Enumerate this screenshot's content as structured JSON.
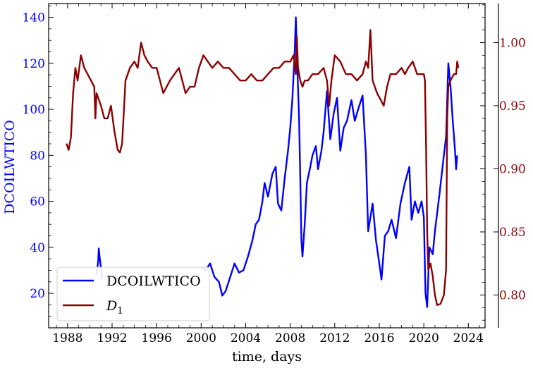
{
  "chart_data": {
    "type": "line",
    "xlabel": "time, days",
    "ylabel_left": "DCOILWTICO",
    "ylabel_right": "",
    "x_ticks": [
      "1988",
      "1992",
      "1996",
      "2000",
      "2004",
      "2008",
      "2012",
      "2016",
      "2020",
      "2024"
    ],
    "y_left_ticks": [
      "20",
      "40",
      "60",
      "80",
      "100",
      "120",
      "140"
    ],
    "y_right_ticks": [
      "0.80",
      "0.85",
      "0.90",
      "0.95",
      "1.00"
    ],
    "xlim": [
      1986.3,
      2025.5
    ],
    "ylim_left": [
      5,
      146
    ],
    "ylim_right": [
      0.774,
      1.031
    ],
    "grid": false,
    "legend_position": "lower-left",
    "colors": {
      "left_axis": "#0000ff",
      "right_axis": "#8b0000"
    },
    "legend": [
      {
        "label": "DCOILWTICO",
        "color": "#0000ff"
      },
      {
        "label_main": "D",
        "label_sub": "1",
        "color": "#8b0000"
      }
    ],
    "series": [
      {
        "name": "DCOILWTICO",
        "axis": "left",
        "color": "#0000ff",
        "segments": [
          [
            [
              1990.6,
              28
            ],
            [
              1990.75,
              34
            ],
            [
              1990.8,
              39.5
            ],
            [
              1990.9,
              35
            ],
            [
              1991.0,
              31
            ],
            [
              1991.1,
              26
            ]
          ],
          [
            [
              2000.0,
              31
            ],
            [
              2000.4,
              30
            ],
            [
              2000.8,
              33
            ],
            [
              2001.2,
              27
            ],
            [
              2001.6,
              25
            ],
            [
              2001.9,
              19
            ],
            [
              2002.2,
              21
            ],
            [
              2002.6,
              27
            ],
            [
              2003.0,
              33
            ],
            [
              2003.4,
              29
            ],
            [
              2003.8,
              30
            ],
            [
              2004.2,
              36
            ],
            [
              2004.6,
              43
            ],
            [
              2004.9,
              50
            ],
            [
              2005.2,
              52
            ],
            [
              2005.5,
              60
            ],
            [
              2005.7,
              68
            ],
            [
              2006.0,
              62
            ],
            [
              2006.4,
              72
            ],
            [
              2006.7,
              75
            ],
            [
              2006.9,
              59
            ],
            [
              2007.2,
              56
            ],
            [
              2007.5,
              70
            ],
            [
              2007.8,
              82
            ],
            [
              2008.0,
              92
            ],
            [
              2008.2,
              105
            ],
            [
              2008.4,
              125
            ],
            [
              2008.5,
              140
            ],
            [
              2008.6,
              124
            ],
            [
              2008.8,
              95
            ],
            [
              2008.9,
              70
            ],
            [
              2009.0,
              43
            ],
            [
              2009.1,
              36
            ],
            [
              2009.3,
              50
            ],
            [
              2009.5,
              68
            ],
            [
              2009.8,
              75
            ],
            [
              2010.0,
              80
            ],
            [
              2010.3,
              84
            ],
            [
              2010.5,
              74
            ],
            [
              2010.8,
              82
            ],
            [
              2011.0,
              90
            ],
            [
              2011.3,
              108
            ],
            [
              2011.6,
              87
            ],
            [
              2011.9,
              98
            ],
            [
              2012.2,
              105
            ],
            [
              2012.5,
              82
            ],
            [
              2012.8,
              92
            ],
            [
              2013.1,
              95
            ],
            [
              2013.5,
              104
            ],
            [
              2013.8,
              95
            ],
            [
              2014.1,
              100
            ],
            [
              2014.5,
              106
            ],
            [
              2014.8,
              80
            ],
            [
              2015.0,
              47
            ],
            [
              2015.4,
              59
            ],
            [
              2015.7,
              43
            ],
            [
              2016.0,
              33
            ],
            [
              2016.2,
              26
            ],
            [
              2016.5,
              45
            ],
            [
              2016.8,
              47
            ],
            [
              2017.1,
              52
            ],
            [
              2017.5,
              44
            ],
            [
              2017.9,
              59
            ],
            [
              2018.3,
              68
            ],
            [
              2018.7,
              75
            ],
            [
              2018.9,
              52
            ],
            [
              2019.2,
              60
            ],
            [
              2019.5,
              55
            ],
            [
              2019.8,
              60
            ],
            [
              2020.0,
              53
            ],
            [
              2020.15,
              20
            ],
            [
              2020.3,
              14
            ],
            [
              2020.5,
              40
            ],
            [
              2020.8,
              37
            ],
            [
              2021.0,
              47
            ],
            [
              2021.4,
              63
            ],
            [
              2021.8,
              80
            ],
            [
              2022.0,
              88
            ],
            [
              2022.2,
              120
            ],
            [
              2022.4,
              110
            ],
            [
              2022.6,
              95
            ],
            [
              2022.8,
              82
            ],
            [
              2022.9,
              74
            ],
            [
              2023.0,
              80
            ]
          ]
        ]
      },
      {
        "name": "D_1",
        "axis": "right",
        "color": "#8b0000",
        "points": [
          [
            1987.9,
            0.92
          ],
          [
            1988.1,
            0.915
          ],
          [
            1988.3,
            0.925
          ],
          [
            1988.5,
            0.96
          ],
          [
            1988.7,
            0.98
          ],
          [
            1988.9,
            0.97
          ],
          [
            1989.2,
            0.99
          ],
          [
            1989.5,
            0.98
          ],
          [
            1989.8,
            0.975
          ],
          [
            1990.1,
            0.97
          ],
          [
            1990.4,
            0.965
          ],
          [
            1990.5,
            0.94
          ],
          [
            1990.6,
            0.96
          ],
          [
            1990.8,
            0.955
          ],
          [
            1991.0,
            0.95
          ],
          [
            1991.3,
            0.94
          ],
          [
            1991.6,
            0.94
          ],
          [
            1991.9,
            0.95
          ],
          [
            1992.2,
            0.93
          ],
          [
            1992.5,
            0.915
          ],
          [
            1992.7,
            0.913
          ],
          [
            1992.9,
            0.92
          ],
          [
            1993.2,
            0.97
          ],
          [
            1993.6,
            0.98
          ],
          [
            1994.0,
            0.985
          ],
          [
            1994.3,
            0.98
          ],
          [
            1994.6,
            1.0
          ],
          [
            1994.9,
            0.99
          ],
          [
            1995.2,
            0.985
          ],
          [
            1995.6,
            0.98
          ],
          [
            1996.0,
            0.98
          ],
          [
            1996.3,
            0.97
          ],
          [
            1996.6,
            0.96
          ],
          [
            1996.9,
            0.965
          ],
          [
            1997.2,
            0.97
          ],
          [
            1997.6,
            0.975
          ],
          [
            1998.0,
            0.98
          ],
          [
            1998.3,
            0.97
          ],
          [
            1998.6,
            0.96
          ],
          [
            1999.0,
            0.965
          ],
          [
            1999.4,
            0.965
          ],
          [
            1999.8,
            0.98
          ],
          [
            2000.2,
            0.99
          ],
          [
            2000.6,
            0.985
          ],
          [
            2001.0,
            0.98
          ],
          [
            2001.5,
            0.985
          ],
          [
            2002.0,
            0.98
          ],
          [
            2002.5,
            0.98
          ],
          [
            2003.0,
            0.975
          ],
          [
            2003.5,
            0.97
          ],
          [
            2004.0,
            0.97
          ],
          [
            2004.5,
            0.975
          ],
          [
            2005.0,
            0.97
          ],
          [
            2005.5,
            0.97
          ],
          [
            2006.0,
            0.975
          ],
          [
            2006.5,
            0.98
          ],
          [
            2007.0,
            0.98
          ],
          [
            2007.5,
            0.985
          ],
          [
            2008.0,
            0.985
          ],
          [
            2008.3,
            0.99
          ],
          [
            2008.5,
            0.975
          ],
          [
            2008.6,
            1.005
          ],
          [
            2008.7,
            0.98
          ],
          [
            2008.9,
            0.97
          ],
          [
            2009.1,
            0.965
          ],
          [
            2009.3,
            0.97
          ],
          [
            2009.6,
            0.97
          ],
          [
            2010.0,
            0.975
          ],
          [
            2010.5,
            0.975
          ],
          [
            2011.0,
            0.98
          ],
          [
            2011.3,
            0.97
          ],
          [
            2011.5,
            0.95
          ],
          [
            2011.7,
            0.97
          ],
          [
            2012.0,
            0.99
          ],
          [
            2012.5,
            0.985
          ],
          [
            2013.0,
            0.975
          ],
          [
            2013.5,
            0.975
          ],
          [
            2014.0,
            0.97
          ],
          [
            2014.5,
            0.975
          ],
          [
            2014.8,
            0.985
          ],
          [
            2015.0,
            0.98
          ],
          [
            2015.2,
            1.01
          ],
          [
            2015.4,
            0.97
          ],
          [
            2015.8,
            0.96
          ],
          [
            2016.1,
            0.955
          ],
          [
            2016.4,
            0.95
          ],
          [
            2016.7,
            0.965
          ],
          [
            2017.0,
            0.975
          ],
          [
            2017.5,
            0.975
          ],
          [
            2018.0,
            0.98
          ],
          [
            2018.3,
            0.975
          ],
          [
            2018.6,
            0.98
          ],
          [
            2019.0,
            0.985
          ],
          [
            2019.4,
            0.975
          ],
          [
            2019.8,
            0.975
          ],
          [
            2020.0,
            0.975
          ],
          [
            2020.1,
            0.97
          ],
          [
            2020.2,
            0.92
          ],
          [
            2020.3,
            0.85
          ],
          [
            2020.4,
            0.82
          ],
          [
            2020.6,
            0.825
          ],
          [
            2020.8,
            0.815
          ],
          [
            2021.0,
            0.8
          ],
          [
            2021.2,
            0.792
          ],
          [
            2021.5,
            0.793
          ],
          [
            2021.8,
            0.8
          ],
          [
            2022.0,
            0.82
          ],
          [
            2022.1,
            0.94
          ],
          [
            2022.2,
            0.965
          ],
          [
            2022.4,
            0.97
          ],
          [
            2022.7,
            0.975
          ],
          [
            2022.9,
            0.975
          ],
          [
            2023.0,
            0.985
          ],
          [
            2023.1,
            0.98
          ]
        ]
      }
    ]
  }
}
